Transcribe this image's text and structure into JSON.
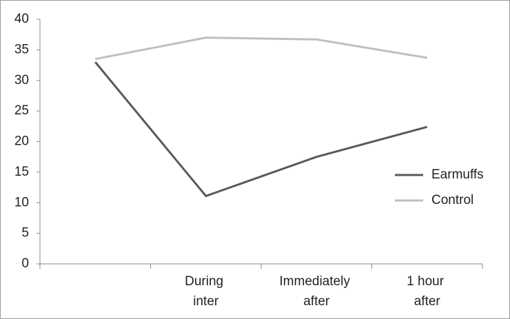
{
  "chart_data": {
    "type": "line",
    "categories": [
      null,
      "During inter",
      "Immediately after",
      "1 hour after"
    ],
    "series": [
      {
        "name": "Earmuffs",
        "color": "#595959",
        "values": [
          33,
          11.1,
          17.5,
          22.4
        ]
      },
      {
        "name": "Control",
        "color": "#bfbfbf",
        "values": [
          33.5,
          37,
          36.7,
          33.7
        ]
      }
    ],
    "ylim": [
      0,
      40
    ],
    "yticks": [
      0,
      5,
      10,
      15,
      20,
      25,
      30,
      35,
      40
    ],
    "grid": false,
    "legend": "right"
  }
}
